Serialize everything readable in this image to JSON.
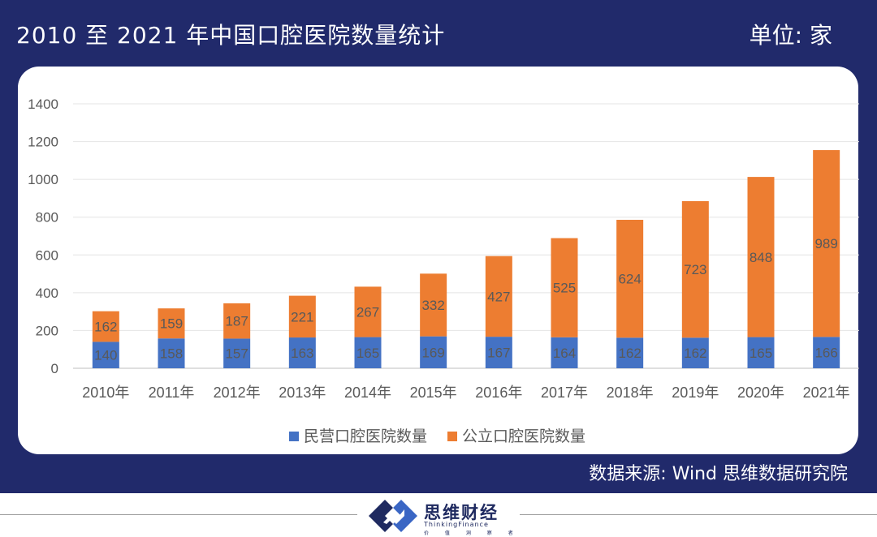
{
  "header": {
    "title": "2010 至 2021 年中国口腔医院数量统计",
    "unit": "单位: 家"
  },
  "source": "数据来源: Wind  思维数据研究院",
  "logo": {
    "name": "思维财经",
    "subtitle": "ThinkingFinance",
    "tagline": "价 值 洞 察 者"
  },
  "colors": {
    "frame": "#212a6b",
    "private": "#4472c4",
    "public": "#ed7d31",
    "label": "#595959"
  },
  "chart_data": {
    "type": "bar",
    "stacked": true,
    "categories": [
      "2010年",
      "2011年",
      "2012年",
      "2013年",
      "2014年",
      "2015年",
      "2016年",
      "2017年",
      "2018年",
      "2019年",
      "2020年",
      "2021年"
    ],
    "series": [
      {
        "name": "民营口腔医院数量",
        "values": [
          140,
          158,
          157,
          163,
          165,
          169,
          167,
          164,
          162,
          162,
          165,
          166
        ]
      },
      {
        "name": "公立口腔医院数量",
        "values": [
          162,
          159,
          187,
          221,
          267,
          332,
          427,
          525,
          624,
          723,
          848,
          989
        ]
      }
    ],
    "yticks": [
      "0",
      "200",
      "400",
      "600",
      "800",
      "1000",
      "1200",
      "1400"
    ],
    "ylim": [
      0,
      1400
    ],
    "grid": true,
    "legend": "bottom"
  }
}
